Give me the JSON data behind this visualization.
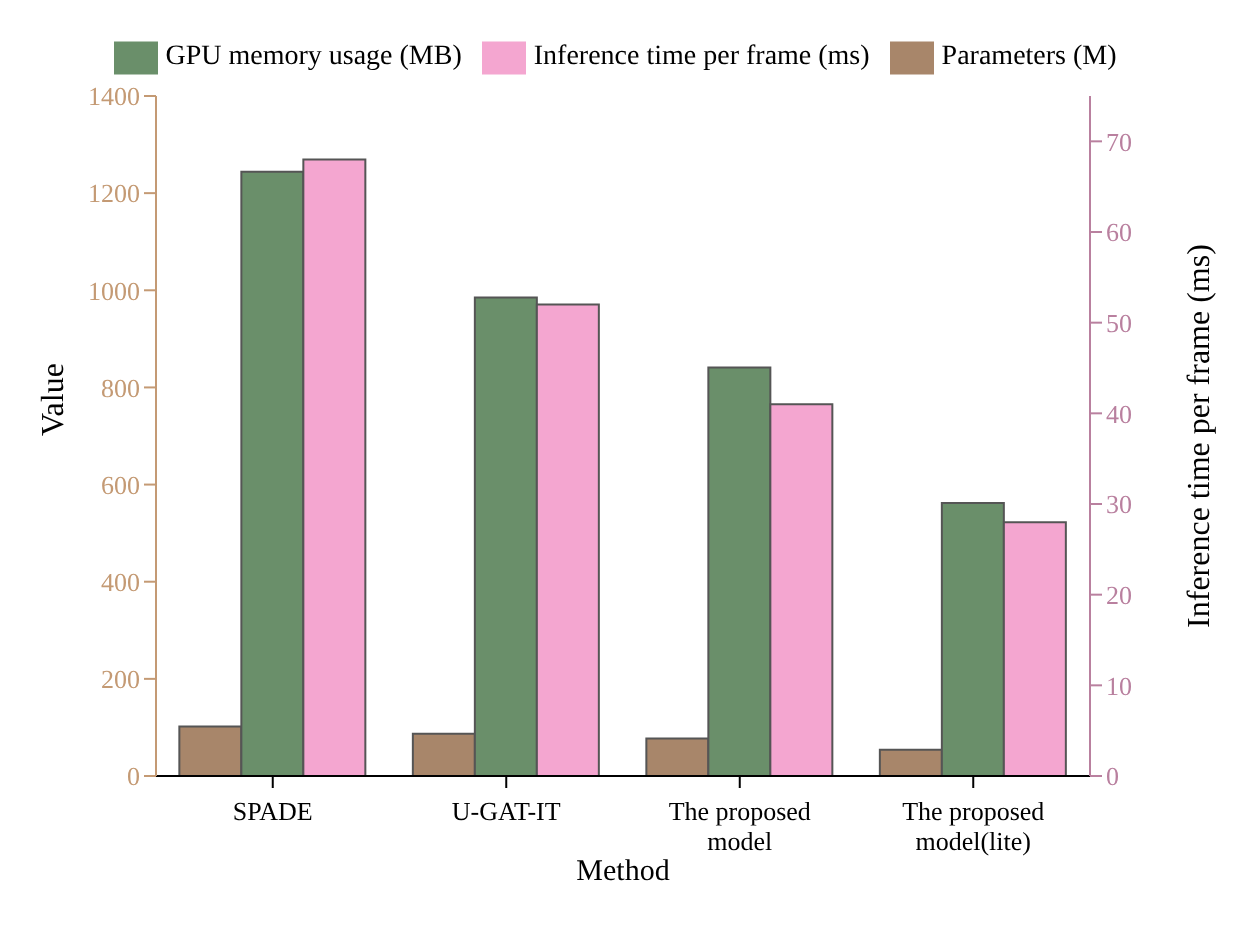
{
  "chart_data": {
    "type": "bar",
    "xlabel": "Method",
    "ylabel": "Value",
    "y2label": "Inference time per frame (ms)",
    "categories": [
      "SPADE",
      "U-GAT-IT",
      "The proposed model",
      "The proposed model(lite)"
    ],
    "series": [
      {
        "name": "Parameters (M)",
        "color": "#a8866a",
        "values": [
          102,
          87,
          77,
          54
        ]
      },
      {
        "name": "GPU memory usage (MB)",
        "color": "#6a8f6a",
        "values": [
          1244,
          985,
          841,
          562
        ]
      },
      {
        "name": "Inference time per frame (ms)",
        "color": "#f4a6d0",
        "values": [
          68,
          52,
          41,
          28
        ],
        "axis": "y2"
      }
    ],
    "ylim": [
      0,
      1400
    ],
    "yticks": [
      0,
      200,
      400,
      600,
      800,
      1000,
      1200,
      1400
    ],
    "y2lim": [
      0,
      75
    ],
    "y2ticks": [
      0,
      10,
      20,
      30,
      40,
      50,
      60,
      70
    ],
    "legend": "top",
    "grid": false
  }
}
